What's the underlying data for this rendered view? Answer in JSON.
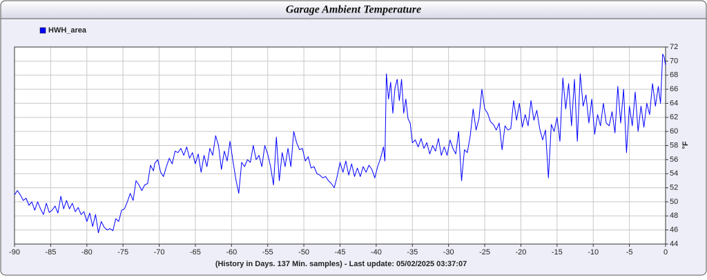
{
  "chart_data": {
    "type": "line",
    "title": "Garage Ambient Temperature",
    "x_label": "(History in Days. 137 Min. samples) - Last update: 05/02/2025 03:37:07",
    "y_label": "°F",
    "legend": "top-left",
    "grid": true,
    "xlim": [
      -90,
      0
    ],
    "ylim": [
      44,
      72
    ],
    "xticks": [
      -90,
      -85,
      -80,
      -75,
      -70,
      -65,
      -60,
      -55,
      -50,
      -45,
      -40,
      -35,
      -30,
      -25,
      -20,
      -15,
      -10,
      -5,
      0
    ],
    "yticks": [
      44,
      46,
      48,
      50,
      52,
      54,
      56,
      58,
      60,
      62,
      64,
      66,
      68,
      70,
      72
    ],
    "x": [
      -90,
      -89.6,
      -89.2,
      -88.8,
      -88.4,
      -88,
      -87.6,
      -87.2,
      -86.8,
      -86.4,
      -86,
      -85.6,
      -85.2,
      -84.8,
      -84.4,
      -84,
      -83.6,
      -83.2,
      -82.8,
      -82.4,
      -82,
      -81.6,
      -81.2,
      -80.8,
      -80.4,
      -80,
      -79.6,
      -79.2,
      -78.8,
      -78.4,
      -78,
      -77.6,
      -77.2,
      -76.8,
      -76.4,
      -76,
      -75.6,
      -75.2,
      -74.8,
      -74.4,
      -74,
      -73.6,
      -73.2,
      -72.8,
      -72.4,
      -72,
      -71.6,
      -71.2,
      -70.8,
      -70.6,
      -70.2,
      -69.8,
      -69.4,
      -69,
      -68.6,
      -68.2,
      -67.8,
      -67.4,
      -67,
      -66.6,
      -66.2,
      -65.8,
      -65.4,
      -65,
      -64.6,
      -64.2,
      -63.8,
      -63.4,
      -63,
      -62.6,
      -62.2,
      -61.8,
      -61.4,
      -61,
      -60.6,
      -60.2,
      -59.8,
      -59.4,
      -59,
      -58.6,
      -58.2,
      -57.8,
      -57.4,
      -57,
      -56.6,
      -56.2,
      -55.8,
      -55.4,
      -55,
      -54.6,
      -54.2,
      -53.8,
      -53.4,
      -53,
      -52.6,
      -52.2,
      -51.8,
      -51.4,
      -51,
      -50.6,
      -50.2,
      -49.8,
      -49.4,
      -49,
      -48.6,
      -48.2,
      -47.8,
      -47.4,
      -47,
      -46.6,
      -46.2,
      -45.8,
      -45.4,
      -45,
      -44.6,
      -44.2,
      -43.8,
      -43.4,
      -43,
      -42.6,
      -42.2,
      -41.8,
      -41.4,
      -41,
      -40.6,
      -40.2,
      -39.8,
      -39.4,
      -39,
      -38.8,
      -38.6,
      -38.3,
      -38,
      -37.7,
      -37.4,
      -37.1,
      -36.8,
      -36.5,
      -36.2,
      -35.9,
      -35.6,
      -35.3,
      -35,
      -34.6,
      -34.2,
      -33.8,
      -33.4,
      -33,
      -32.6,
      -32.2,
      -31.8,
      -31.4,
      -31,
      -30.6,
      -30.2,
      -29.8,
      -29.4,
      -29,
      -28.6,
      -28.2,
      -27.8,
      -27.4,
      -27,
      -26.6,
      -26.2,
      -25.8,
      -25.4,
      -25,
      -24.6,
      -24.2,
      -23.8,
      -23.4,
      -23,
      -22.6,
      -22.2,
      -21.8,
      -21.4,
      -21,
      -20.6,
      -20.2,
      -19.8,
      -19.4,
      -19,
      -18.6,
      -18.2,
      -17.8,
      -17.4,
      -17,
      -16.6,
      -16.2,
      -15.8,
      -15.4,
      -15,
      -14.6,
      -14.2,
      -13.8,
      -13.4,
      -13,
      -12.6,
      -12.2,
      -11.8,
      -11.4,
      -11,
      -10.6,
      -10.2,
      -9.8,
      -9.4,
      -9,
      -8.6,
      -8.2,
      -7.8,
      -7.4,
      -7,
      -6.6,
      -6.2,
      -5.8,
      -5.4,
      -5,
      -4.6,
      -4.2,
      -3.8,
      -3.4,
      -3,
      -2.6,
      -2.2,
      -1.8,
      -1.4,
      -1,
      -0.7,
      -0.4,
      -0.2,
      0
    ],
    "series": [
      {
        "name": "HWH_area",
        "color": "#0000ff",
        "values": [
          51,
          51.6,
          51,
          50.2,
          50.5,
          49.5,
          50,
          48.8,
          50,
          49,
          48.2,
          49.8,
          48.5,
          48.8,
          49.4,
          48.4,
          50.8,
          49,
          50.2,
          49,
          49.8,
          48.6,
          49.2,
          48.2,
          48.6,
          47.2,
          48.4,
          46.5,
          48.2,
          45.6,
          47.2,
          46.4,
          46,
          46.2,
          45.9,
          47.6,
          47.2,
          48.8,
          49,
          50,
          51.2,
          50.2,
          53,
          52.4,
          51.6,
          52.4,
          52.6,
          55.2,
          54.4,
          55.5,
          56,
          54.2,
          53.6,
          55,
          56.2,
          55.4,
          57.2,
          57,
          57.6,
          56.6,
          57.8,
          56.2,
          57,
          55.4,
          56.8,
          54.2,
          56.6,
          55,
          57.6,
          56.6,
          59.4,
          58,
          54.6,
          57.2,
          55.8,
          58.6,
          55.8,
          53.2,
          51.2,
          55.6,
          55,
          56,
          55.6,
          58,
          56,
          56.6,
          55,
          58,
          56.8,
          55,
          52.4,
          59.2,
          53,
          57,
          55,
          57.6,
          55,
          60,
          58.4,
          57.4,
          57.6,
          55.8,
          56.4,
          54.8,
          55,
          54,
          53.8,
          53.4,
          53.6,
          53,
          52.6,
          52,
          53.6,
          55.6,
          54.2,
          55.8,
          53.8,
          55.4,
          53.6,
          54.8,
          53.6,
          55,
          54.2,
          55.2,
          54.6,
          53.4,
          55,
          56.2,
          57.8,
          55.8,
          68.2,
          64.6,
          67,
          62.6,
          66.2,
          67.4,
          64.4,
          67.4,
          62.6,
          64.6,
          61.8,
          61.2,
          58.4,
          58.8,
          57.8,
          59,
          57.6,
          58.4,
          56.8,
          58,
          57.2,
          59,
          56.6,
          57.8,
          56.6,
          58.8,
          57.6,
          56.8,
          60,
          53,
          57.4,
          57,
          59.4,
          63.2,
          60.2,
          61.8,
          66,
          63.2,
          62.6,
          61.4,
          61,
          60.2,
          61.2,
          57.4,
          60.8,
          60.2,
          60.4,
          64.4,
          61.6,
          64,
          60.6,
          62.4,
          60.8,
          64.4,
          61.6,
          63,
          60.4,
          58.8,
          60.2,
          53.4,
          61,
          60,
          62,
          58.6,
          67.6,
          63.2,
          66.8,
          60.8,
          67.4,
          58.6,
          68.2,
          63.6,
          65.2,
          61.2,
          64.6,
          59.6,
          62.4,
          60.8,
          64,
          61.2,
          60.8,
          62.8,
          59.8,
          66.4,
          61.2,
          66,
          57,
          63.6,
          60.8,
          65.6,
          60,
          63.6,
          60.6,
          64,
          62.4,
          66.8,
          63.6,
          66.4,
          64,
          71,
          70.6,
          69.4
        ]
      }
    ]
  }
}
